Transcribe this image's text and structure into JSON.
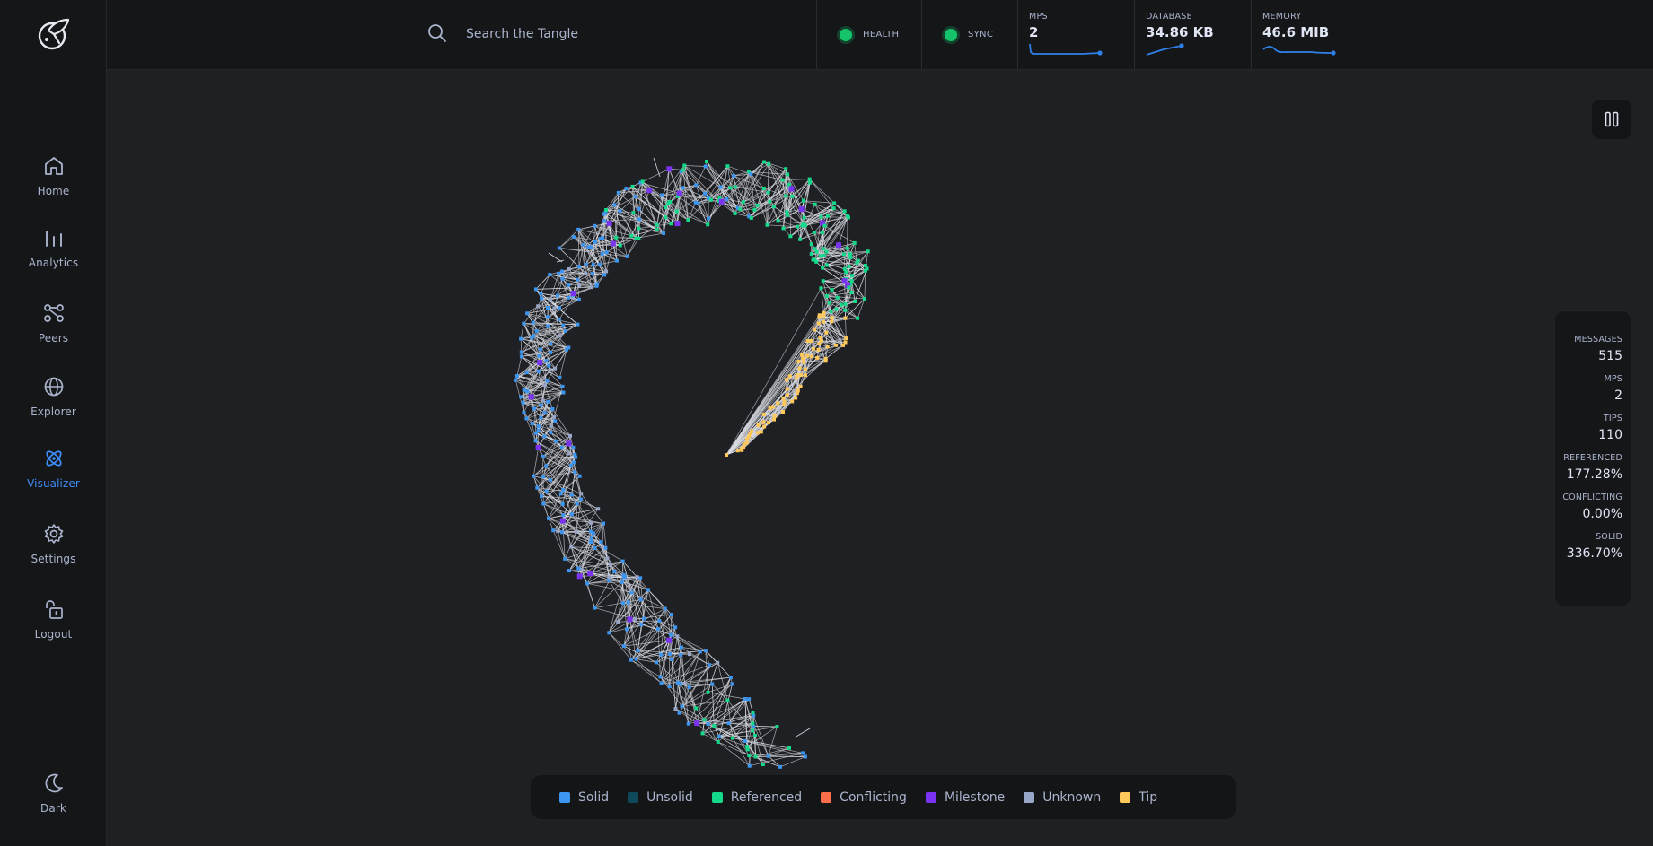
{
  "nav": {
    "items": [
      {
        "label": "Home"
      },
      {
        "label": "Analytics"
      },
      {
        "label": "Peers"
      },
      {
        "label": "Explorer"
      },
      {
        "label": "Visualizer"
      },
      {
        "label": "Settings"
      },
      {
        "label": "Logout"
      }
    ],
    "theme_label": "Dark",
    "active": "Visualizer"
  },
  "header": {
    "search_placeholder": "Search the Tangle",
    "health_label": "HEALTH",
    "sync_label": "SYNC",
    "mps_label": "MPS",
    "mps_value": "2",
    "database_label": "DATABASE",
    "database_value": "34.86 KB",
    "memory_label": "MEMORY",
    "memory_value": "46.6 MIB"
  },
  "stats": {
    "items": [
      {
        "label": "MESSAGES",
        "value": "515"
      },
      {
        "label": "MPS",
        "value": "2"
      },
      {
        "label": "TIPS",
        "value": "110"
      },
      {
        "label": "REFERENCED",
        "value": "177.28%"
      },
      {
        "label": "CONFLICTING",
        "value": "0.00%"
      },
      {
        "label": "SOLID",
        "value": "336.70%"
      }
    ]
  },
  "legend": {
    "items": [
      {
        "label": "Solid",
        "color": "#3c96f0"
      },
      {
        "label": "Unsolid",
        "color": "#0e4a5c"
      },
      {
        "label": "Referenced",
        "color": "#14d98a"
      },
      {
        "label": "Conflicting",
        "color": "#ff6e4a"
      },
      {
        "label": "Milestone",
        "color": "#7a34f0"
      },
      {
        "label": "Unknown",
        "color": "#9aa6c7"
      },
      {
        "label": "Tip",
        "color": "#ffc85a"
      }
    ]
  },
  "colors": {
    "accent": "#3d8cf5",
    "health": "#15c46a",
    "edge": "#d8dbe3"
  }
}
